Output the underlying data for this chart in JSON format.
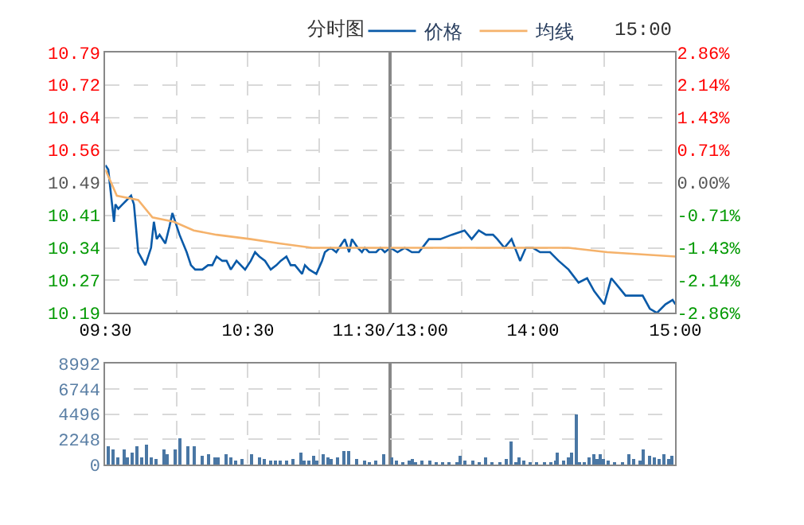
{
  "chart_data": [
    {
      "type": "line",
      "title": "分时图",
      "annotations": [
        "15:00"
      ],
      "legend": "top",
      "grid": true,
      "marker": "none",
      "line_style": "solid",
      "xlim": [
        9.5,
        11.5
      ],
      "xticks": [
        {
          "value": 9.5,
          "label": "09:30"
        },
        {
          "value": 10,
          "label": null
        },
        {
          "value": 10.5,
          "label": "10:30"
        },
        {
          "value": 11,
          "label": null
        },
        {
          "value": 11.5,
          "label": "11:30/13:00"
        }
      ],
      "ylim": [
        10.19,
        10.79
      ],
      "yticks": [
        10.79,
        {
          "value": 10.715,
          "label": "10.72"
        },
        10.64,
        {
          "value": 10.565,
          "label": "10.56"
        },
        10.49,
        {
          "value": 10.415,
          "label": "10.41"
        },
        10.34,
        {
          "value": 10.265,
          "label": "10.27"
        },
        10.19
      ],
      "series": [
        {
          "name": "价格",
          "color": "#0a5aa8",
          "x": [
            9.5,
            9.52,
            9.54,
            9.56,
            9.57,
            9.59,
            9.62,
            9.68,
            9.7,
            9.73,
            9.78,
            9.82,
            9.84,
            9.86,
            9.88,
            9.92,
            9.95,
            9.97,
            10.02,
            10.07,
            10.1,
            10.13,
            10.18,
            10.22,
            10.25,
            10.28,
            10.32,
            10.35,
            10.38,
            10.42,
            10.48,
            10.52,
            10.55,
            10.58,
            10.62,
            10.66,
            10.7,
            10.73,
            10.77,
            10.8,
            10.83,
            10.88,
            10.9,
            10.93,
            10.98,
            11.02,
            11.04,
            11.08,
            11.12,
            11.16,
            11.18,
            11.21,
            11.23,
            11.27,
            11.3,
            11.32,
            11.35,
            11.4,
            11.43,
            11.46,
            11.5
          ],
          "values": [
            10.53,
            10.52,
            10.46,
            10.4,
            10.44,
            10.43,
            10.44,
            10.46,
            10.44,
            10.33,
            10.3,
            10.34,
            10.4,
            10.36,
            10.37,
            10.35,
            10.39,
            10.42,
            10.37,
            10.33,
            10.3,
            10.29,
            10.29,
            10.3,
            10.3,
            10.32,
            10.31,
            10.31,
            10.29,
            10.31,
            10.29,
            10.31,
            10.33,
            10.32,
            10.31,
            10.29,
            10.3,
            10.31,
            10.32,
            10.3,
            10.3,
            10.28,
            10.3,
            10.29,
            10.28,
            10.31,
            10.33,
            10.34,
            10.33,
            10.35,
            10.36,
            10.33,
            10.36,
            10.34,
            10.33,
            10.34,
            10.33,
            10.33,
            10.34,
            10.33,
            10.34
          ]
        },
        {
          "name": "均线",
          "color": "#f5b26b",
          "x": [
            9.5,
            9.58,
            9.73,
            9.83,
            9.98,
            10.12,
            10.28,
            10.52,
            10.72,
            10.95,
            11.28,
            11.5
          ],
          "values": [
            10.52,
            10.46,
            10.45,
            10.41,
            10.4,
            10.38,
            10.37,
            10.36,
            10.35,
            10.34,
            10.34,
            10.34
          ]
        }
      ]
    },
    {
      "type": "line",
      "grid": true,
      "marker": "none",
      "line_style": "solid",
      "tick_labels": "x",
      "xlim": [
        13,
        15
      ],
      "xticks": [
        {
          "value": 13,
          "label": null
        },
        {
          "value": 13.5,
          "label": null
        },
        {
          "value": 14,
          "label": "14:00"
        },
        {
          "value": 14.5,
          "label": null
        },
        {
          "value": 15,
          "label": "15:00"
        }
      ],
      "ylim": [
        10.19,
        10.79
      ],
      "yticks": [
        10.79,
        10.715,
        10.64,
        10.565,
        10.49,
        10.415,
        10.34,
        10.265,
        10.19
      ],
      "y2lim": [
        -2.86,
        2.86
      ],
      "y2ticks": [
        {
          "value": 2.86,
          "label": "2.86%"
        },
        {
          "value": 2.145,
          "label": "2.14%"
        },
        {
          "value": 1.43,
          "label": "1.43%"
        },
        {
          "value": 0.715,
          "label": "0.71%"
        },
        {
          "value": 0,
          "label": "0.00%"
        },
        {
          "value": -0.715,
          "label": "-0.71%"
        },
        {
          "value": -1.43,
          "label": "-1.43%"
        },
        {
          "value": -2.145,
          "label": "-2.14%"
        },
        {
          "value": -2.86,
          "label": "-2.86%"
        }
      ],
      "series": [
        {
          "color": "#0a5aa8",
          "x": [
            13,
            13.05,
            13.1,
            13.15,
            13.2,
            13.27,
            13.35,
            13.43,
            13.52,
            13.57,
            13.62,
            13.67,
            13.72,
            13.75,
            13.8,
            13.85,
            13.91,
            13.95,
            14,
            14.05,
            14.12,
            14.18,
            14.25,
            14.32,
            14.38,
            14.43,
            14.5,
            14.55,
            14.6,
            14.65,
            14.7,
            14.77,
            14.82,
            14.87,
            14.93,
            14.98,
            15
          ],
          "values": [
            10.34,
            10.33,
            10.34,
            10.33,
            10.33,
            10.36,
            10.36,
            10.37,
            10.38,
            10.36,
            10.38,
            10.37,
            10.37,
            10.36,
            10.34,
            10.36,
            10.31,
            10.34,
            10.34,
            10.33,
            10.33,
            10.31,
            10.29,
            10.26,
            10.27,
            10.24,
            10.21,
            10.27,
            10.25,
            10.23,
            10.23,
            10.23,
            10.2,
            10.19,
            10.21,
            10.22,
            10.21
          ]
        },
        {
          "color": "#f5b26b",
          "x": [
            13,
            13.52,
            14,
            14.25,
            14.52,
            15
          ],
          "values": [
            10.34,
            10.34,
            10.34,
            10.34,
            10.33,
            10.32
          ]
        }
      ]
    },
    {
      "type": "bar",
      "grid": true,
      "tick_labels": "y",
      "xlim": [
        9.5,
        11.5
      ],
      "xticks": [
        9.5,
        10,
        10.5,
        11,
        11.5
      ],
      "ylim": [
        0,
        8992
      ],
      "yticks": [
        0,
        2248,
        4496,
        6744,
        8992
      ],
      "series": [
        {
          "color": "#4a77a4",
          "x": [
            9.52,
            9.56,
            9.59,
            9.63,
            9.66,
            9.69,
            9.73,
            9.76,
            9.79,
            9.83,
            9.86,
            9.91,
            9.94,
            9.99,
            10.03,
            10.08,
            10.13,
            10.18,
            10.23,
            10.27,
            10.3,
            10.35,
            10.38,
            10.42,
            10.46,
            10.53,
            10.58,
            10.62,
            10.66,
            10.7,
            10.73,
            10.78,
            10.82,
            10.87,
            10.9,
            10.93,
            10.96,
            10.99,
            11.03,
            11.06,
            11.09,
            11.13,
            11.18,
            11.21,
            11.27,
            11.32,
            11.36,
            11.4,
            11.46
          ],
          "values": [
            1700,
            1400,
            600,
            1400,
            700,
            1100,
            1600,
            700,
            1800,
            700,
            500,
            1400,
            900,
            1300,
            2400,
            1600,
            1600,
            800,
            900,
            600,
            600,
            1000,
            600,
            300,
            500,
            900,
            700,
            500,
            300,
            300,
            300,
            300,
            500,
            1100,
            300,
            300,
            800,
            300,
            1000,
            600,
            500,
            600,
            1200,
            1200,
            500,
            300,
            100,
            300,
            1000
          ]
        }
      ]
    },
    {
      "type": "bar",
      "grid": true,
      "tick_labels": false,
      "xlim": [
        13,
        15
      ],
      "xticks": [
        13,
        13.5,
        14,
        14.5,
        15
      ],
      "ylim": [
        0,
        8992
      ],
      "yticks": [
        0,
        2248,
        4496,
        6744,
        8992
      ],
      "series": [
        {
          "color": "#4a77a4",
          "x": [
            13.01,
            13.05,
            13.09,
            13.13,
            13.16,
            13.18,
            13.23,
            13.28,
            13.32,
            13.37,
            13.42,
            13.47,
            13.49,
            13.53,
            13.58,
            13.63,
            13.67,
            13.72,
            13.77,
            13.82,
            13.85,
            13.88,
            13.91,
            13.94,
            13.98,
            14.03,
            14.08,
            14.13,
            14.16,
            14.18,
            14.22,
            14.25,
            14.28,
            14.31,
            14.33,
            14.365,
            14.4,
            14.43,
            14.45,
            14.48,
            14.5,
            14.53,
            14.58,
            14.63,
            14.68,
            14.71,
            14.75,
            14.78,
            14.82,
            14.86,
            14.89,
            14.92,
            14.96,
            14.98
          ],
          "values": [
            700,
            300,
            100,
            300,
            500,
            100,
            300,
            300,
            100,
            100,
            100,
            100,
            800,
            300,
            300,
            100,
            700,
            100,
            100,
            500,
            2000,
            100,
            600,
            300,
            100,
            100,
            100,
            100,
            300,
            1100,
            300,
            700,
            1100,
            4500,
            100,
            100,
            700,
            1000,
            500,
            1000,
            500,
            300,
            100,
            100,
            1000,
            500,
            300,
            1400,
            800,
            600,
            500,
            900,
            500,
            800
          ]
        }
      ]
    }
  ]
}
